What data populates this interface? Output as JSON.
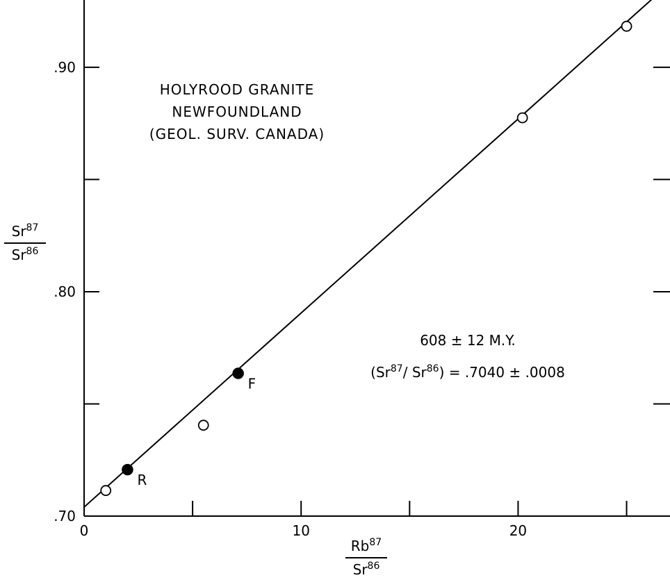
{
  "chart_data": {
    "type": "scatter",
    "title_lines": [
      "HOLYROOD GRANITE",
      "NEWFOUNDLAND",
      "(GEOL. SURV. CANADA)"
    ],
    "annotation": {
      "age": "608 ± 12 M.Y.",
      "ratio_prefix": "(Sr",
      "ratio_sup1": "87",
      "ratio_mid": "/ Sr",
      "ratio_sup2": "86",
      "ratio_suffix": ") = .7040 ± .0008"
    },
    "xlabel": {
      "num_base": "Rb",
      "num_sup": "87",
      "den_base": "Sr",
      "den_sup": "86"
    },
    "ylabel": {
      "num_base": "Sr",
      "num_sup": "87",
      "den_base": "Sr",
      "den_sup": "86"
    },
    "xlim": [
      0,
      27
    ],
    "ylim": [
      0.7,
      0.93
    ],
    "x_ticks": [
      {
        "value": 0,
        "label": "0"
      },
      {
        "value": 5,
        "label": ""
      },
      {
        "value": 10,
        "label": "10"
      },
      {
        "value": 15,
        "label": ""
      },
      {
        "value": 20,
        "label": "20"
      },
      {
        "value": 25,
        "label": ""
      }
    ],
    "y_ticks": [
      {
        "value": 0.7,
        "label": ".70"
      },
      {
        "value": 0.75,
        "label": ""
      },
      {
        "value": 0.8,
        "label": ".80"
      },
      {
        "value": 0.85,
        "label": ""
      },
      {
        "value": 0.9,
        "label": ".90"
      }
    ],
    "series": [
      {
        "marker": "open-circle",
        "points": [
          {
            "x": 1.0,
            "y": 0.7114,
            "label": ""
          },
          {
            "x": 5.5,
            "y": 0.7405,
            "label": ""
          },
          {
            "x": 20.2,
            "y": 0.8775,
            "label": ""
          },
          {
            "x": 25.0,
            "y": 0.9183,
            "label": ""
          }
        ]
      },
      {
        "marker": "filled-circle",
        "points": [
          {
            "x": 2.0,
            "y": 0.7207,
            "label": "R"
          },
          {
            "x": 7.1,
            "y": 0.7636,
            "label": "F"
          }
        ]
      }
    ],
    "fit_line": {
      "intercept": 0.704,
      "slope": 0.00865,
      "x_range": [
        0,
        27
      ]
    }
  }
}
